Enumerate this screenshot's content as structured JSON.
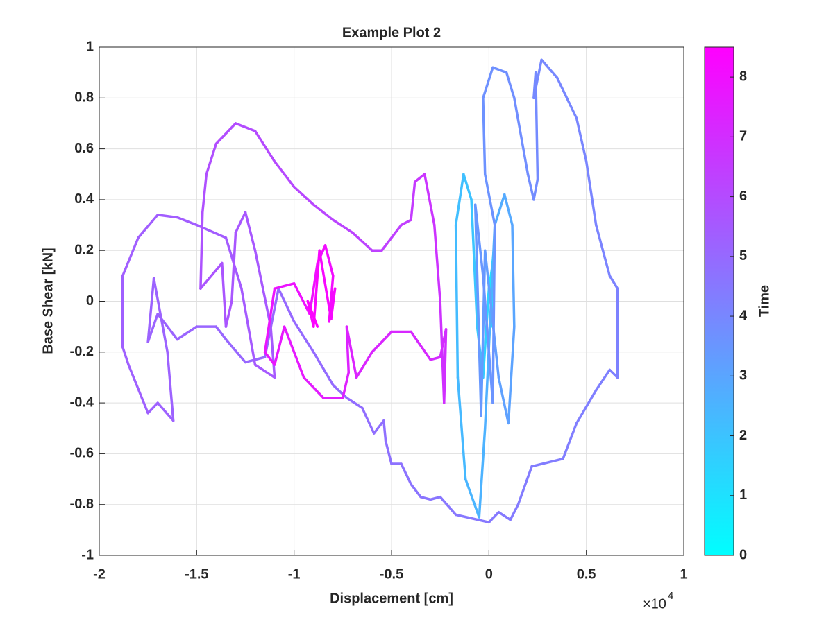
{
  "chart_data": {
    "type": "colored-line",
    "title": "Example Plot 2",
    "x_label": "Displacement [cm]",
    "y_label": "Base Shear [kN]",
    "x_multiplier": "×10",
    "x_multiplier_exponent": "4",
    "colorbar_label": "Time",
    "colormap": "cool",
    "grid": true,
    "xlim": [
      -20000,
      10000
    ],
    "xticks": [
      {
        "value": -20000,
        "label": "-2"
      },
      {
        "value": -15000,
        "label": "-1.5"
      },
      {
        "value": -10000,
        "label": "-1"
      },
      {
        "value": -5000,
        "label": "-0.5"
      },
      0,
      {
        "value": 5000,
        "label": "0.5"
      },
      {
        "value": 10000,
        "label": "1"
      }
    ],
    "ylim": [
      -1,
      1
    ],
    "yticks": [
      -1,
      -0.8,
      -0.6,
      -0.4,
      -0.2,
      0,
      0.2,
      0.4,
      0.6,
      0.8,
      1
    ],
    "clim": [
      0,
      8.5
    ],
    "cticks": [
      0,
      1,
      2,
      3,
      4,
      5,
      6,
      7,
      8
    ],
    "points": [
      {
        "x": 0,
        "y": 0,
        "time": 0
      },
      {
        "x": 300,
        "y": 0.24,
        "time": 0.3
      },
      {
        "x": 100,
        "y": -0.1,
        "time": 0.6
      },
      {
        "x": 200,
        "y": 0.15,
        "time": 0.9
      },
      {
        "x": 0,
        "y": 0.05,
        "time": 1.2
      },
      {
        "x": -300,
        "y": -0.3,
        "time": 1.8
      },
      {
        "x": -600,
        "y": -0.1,
        "time": 1.9
      },
      {
        "x": -900,
        "y": 0.4,
        "time": 2.0
      },
      {
        "x": -1300,
        "y": 0.5,
        "time": 2.1
      },
      {
        "x": -1700,
        "y": 0.3,
        "time": 2.2
      },
      {
        "x": -1600,
        "y": -0.3,
        "time": 2.3
      },
      {
        "x": -1200,
        "y": -0.7,
        "time": 2.4
      },
      {
        "x": -500,
        "y": -0.85,
        "time": 2.5
      },
      {
        "x": -200,
        "y": -0.5,
        "time": 2.6
      },
      {
        "x": 300,
        "y": 0.3,
        "time": 2.7
      },
      {
        "x": 800,
        "y": 0.42,
        "time": 2.8
      },
      {
        "x": 1200,
        "y": 0.3,
        "time": 2.9
      },
      {
        "x": 1300,
        "y": -0.1,
        "time": 3.0
      },
      {
        "x": 1000,
        "y": -0.48,
        "time": 3.1
      },
      {
        "x": 500,
        "y": -0.3,
        "time": 3.2
      },
      {
        "x": -200,
        "y": 0.2,
        "time": 3.3
      },
      {
        "x": -400,
        "y": -0.45,
        "time": 3.4
      },
      {
        "x": -700,
        "y": 0.38,
        "time": 3.45
      },
      {
        "x": -300,
        "y": 0.1,
        "time": 3.5
      },
      {
        "x": 200,
        "y": -0.4,
        "time": 3.55
      },
      {
        "x": 300,
        "y": 0.3,
        "time": 3.6
      },
      {
        "x": -200,
        "y": 0.5,
        "time": 3.63
      },
      {
        "x": -300,
        "y": 0.8,
        "time": 3.66
      },
      {
        "x": 200,
        "y": 0.92,
        "time": 3.7
      },
      {
        "x": 900,
        "y": 0.9,
        "time": 3.73
      },
      {
        "x": 1300,
        "y": 0.8,
        "time": 3.76
      },
      {
        "x": 2000,
        "y": 0.5,
        "time": 3.8
      },
      {
        "x": 2300,
        "y": 0.4,
        "time": 3.83
      },
      {
        "x": 2500,
        "y": 0.48,
        "time": 3.86
      },
      {
        "x": 2400,
        "y": 0.9,
        "time": 3.9
      },
      {
        "x": 2300,
        "y": 0.8,
        "time": 3.93
      },
      {
        "x": 2700,
        "y": 0.95,
        "time": 3.96
      },
      {
        "x": 3500,
        "y": 0.88,
        "time": 4.0
      },
      {
        "x": 4500,
        "y": 0.72,
        "time": 4.03
      },
      {
        "x": 5000,
        "y": 0.55,
        "time": 4.06
      },
      {
        "x": 5500,
        "y": 0.3,
        "time": 4.1
      },
      {
        "x": 6200,
        "y": 0.1,
        "time": 4.13
      },
      {
        "x": 6600,
        "y": 0.05,
        "time": 4.16
      },
      {
        "x": 6600,
        "y": -0.3,
        "time": 4.2
      },
      {
        "x": 6200,
        "y": -0.27,
        "time": 4.23
      },
      {
        "x": 5500,
        "y": -0.35,
        "time": 4.26
      },
      {
        "x": 4500,
        "y": -0.48,
        "time": 4.3
      },
      {
        "x": 3800,
        "y": -0.62,
        "time": 4.33
      },
      {
        "x": 2200,
        "y": -0.65,
        "time": 4.36
      },
      {
        "x": 1500,
        "y": -0.8,
        "time": 4.4
      },
      {
        "x": 1100,
        "y": -0.86,
        "time": 4.43
      },
      {
        "x": 500,
        "y": -0.83,
        "time": 4.46
      },
      {
        "x": 0,
        "y": -0.87,
        "time": 4.5
      },
      {
        "x": -1700,
        "y": -0.84,
        "time": 4.53
      },
      {
        "x": -2500,
        "y": -0.77,
        "time": 4.56
      },
      {
        "x": -3000,
        "y": -0.78,
        "time": 4.6
      },
      {
        "x": -3500,
        "y": -0.77,
        "time": 4.63
      },
      {
        "x": -4000,
        "y": -0.72,
        "time": 4.66
      },
      {
        "x": -4500,
        "y": -0.64,
        "time": 4.7
      },
      {
        "x": -5000,
        "y": -0.64,
        "time": 4.73
      },
      {
        "x": -5300,
        "y": -0.55,
        "time": 4.76
      },
      {
        "x": -5400,
        "y": -0.47,
        "time": 4.8
      },
      {
        "x": -5900,
        "y": -0.52,
        "time": 4.83
      },
      {
        "x": -6500,
        "y": -0.42,
        "time": 4.86
      },
      {
        "x": -7300,
        "y": -0.38,
        "time": 4.9
      },
      {
        "x": -8000,
        "y": -0.33,
        "time": 4.93
      },
      {
        "x": -9000,
        "y": -0.2,
        "time": 4.96
      },
      {
        "x": -10000,
        "y": -0.08,
        "time": 5.0
      },
      {
        "x": -10800,
        "y": 0.05,
        "time": 5.02
      },
      {
        "x": -11500,
        "y": -0.22,
        "time": 5.04
      },
      {
        "x": -12500,
        "y": -0.24,
        "time": 5.06
      },
      {
        "x": -13500,
        "y": -0.15,
        "time": 5.08
      },
      {
        "x": -14000,
        "y": -0.1,
        "time": 5.1
      },
      {
        "x": -15000,
        "y": -0.1,
        "time": 5.12
      },
      {
        "x": -16000,
        "y": -0.15,
        "time": 5.14
      },
      {
        "x": -17000,
        "y": -0.05,
        "time": 5.16
      },
      {
        "x": -17500,
        "y": -0.16,
        "time": 5.18
      },
      {
        "x": -17200,
        "y": 0.09,
        "time": 5.2
      },
      {
        "x": -16500,
        "y": -0.2,
        "time": 5.22
      },
      {
        "x": -16200,
        "y": -0.47,
        "time": 5.24
      },
      {
        "x": -17000,
        "y": -0.4,
        "time": 5.26
      },
      {
        "x": -17500,
        "y": -0.44,
        "time": 5.28
      },
      {
        "x": -18500,
        "y": -0.25,
        "time": 5.3
      },
      {
        "x": -18800,
        "y": -0.18,
        "time": 5.32
      },
      {
        "x": -18800,
        "y": 0.1,
        "time": 5.34
      },
      {
        "x": -18000,
        "y": 0.25,
        "time": 5.36
      },
      {
        "x": -17000,
        "y": 0.34,
        "time": 5.38
      },
      {
        "x": -16000,
        "y": 0.33,
        "time": 5.4
      },
      {
        "x": -15000,
        "y": 0.3,
        "time": 5.43
      },
      {
        "x": -13500,
        "y": 0.25,
        "time": 5.46
      },
      {
        "x": -12700,
        "y": 0.05,
        "time": 5.5
      },
      {
        "x": -12000,
        "y": -0.25,
        "time": 5.52
      },
      {
        "x": -11000,
        "y": -0.3,
        "time": 5.54
      },
      {
        "x": -11200,
        "y": -0.1,
        "time": 5.56
      },
      {
        "x": -12000,
        "y": 0.2,
        "time": 5.58
      },
      {
        "x": -12500,
        "y": 0.35,
        "time": 5.6
      },
      {
        "x": -13000,
        "y": 0.27,
        "time": 5.62
      },
      {
        "x": -13200,
        "y": 0,
        "time": 5.64
      },
      {
        "x": -13500,
        "y": -0.1,
        "time": 5.66
      },
      {
        "x": -13700,
        "y": 0.15,
        "time": 5.68
      },
      {
        "x": -14800,
        "y": 0.05,
        "time": 5.7
      },
      {
        "x": -14700,
        "y": 0.35,
        "time": 5.8
      },
      {
        "x": -14500,
        "y": 0.5,
        "time": 5.85
      },
      {
        "x": -14000,
        "y": 0.62,
        "time": 5.9
      },
      {
        "x": -13000,
        "y": 0.7,
        "time": 5.95
      },
      {
        "x": -12000,
        "y": 0.67,
        "time": 6.0
      },
      {
        "x": -11000,
        "y": 0.55,
        "time": 6.05
      },
      {
        "x": -10000,
        "y": 0.45,
        "time": 6.1
      },
      {
        "x": -9000,
        "y": 0.38,
        "time": 6.15
      },
      {
        "x": -8000,
        "y": 0.32,
        "time": 6.2
      },
      {
        "x": -7000,
        "y": 0.27,
        "time": 6.25
      },
      {
        "x": -6000,
        "y": 0.2,
        "time": 6.3
      },
      {
        "x": -5500,
        "y": 0.2,
        "time": 6.35
      },
      {
        "x": -4500,
        "y": 0.3,
        "time": 6.4
      },
      {
        "x": -4000,
        "y": 0.32,
        "time": 6.5
      },
      {
        "x": -3800,
        "y": 0.47,
        "time": 6.6
      },
      {
        "x": -3300,
        "y": 0.5,
        "time": 6.7
      },
      {
        "x": -2800,
        "y": 0.3,
        "time": 6.8
      },
      {
        "x": -2500,
        "y": 0,
        "time": 6.85
      },
      {
        "x": -2300,
        "y": -0.4,
        "time": 6.9
      },
      {
        "x": -2200,
        "y": -0.11,
        "time": 7.0
      },
      {
        "x": -2500,
        "y": -0.22,
        "time": 7.05
      },
      {
        "x": -3000,
        "y": -0.23,
        "time": 7.1
      },
      {
        "x": -4000,
        "y": -0.12,
        "time": 7.15
      },
      {
        "x": -5000,
        "y": -0.12,
        "time": 7.2
      },
      {
        "x": -6000,
        "y": -0.2,
        "time": 7.25
      },
      {
        "x": -6800,
        "y": -0.3,
        "time": 7.3
      },
      {
        "x": -7300,
        "y": -0.1,
        "time": 7.35
      },
      {
        "x": -7200,
        "y": -0.28,
        "time": 7.4
      },
      {
        "x": -7500,
        "y": -0.38,
        "time": 7.45
      },
      {
        "x": -8500,
        "y": -0.38,
        "time": 7.5
      },
      {
        "x": -9500,
        "y": -0.3,
        "time": 7.6
      },
      {
        "x": -10500,
        "y": -0.1,
        "time": 7.7
      },
      {
        "x": -11000,
        "y": -0.25,
        "time": 7.75
      },
      {
        "x": -11500,
        "y": -0.2,
        "time": 7.8
      },
      {
        "x": -11000,
        "y": 0.05,
        "time": 7.85
      },
      {
        "x": -10000,
        "y": 0.07,
        "time": 7.9
      },
      {
        "x": -9200,
        "y": -0.05,
        "time": 7.95
      },
      {
        "x": -8800,
        "y": 0.15,
        "time": 8.0
      },
      {
        "x": -8400,
        "y": 0.22,
        "time": 8.05
      },
      {
        "x": -8000,
        "y": 0.1,
        "time": 8.1
      },
      {
        "x": -8200,
        "y": -0.08,
        "time": 8.15
      },
      {
        "x": -7900,
        "y": 0.05,
        "time": 8.2
      },
      {
        "x": -8100,
        "y": -0.07,
        "time": 8.25
      },
      {
        "x": -8700,
        "y": 0.2,
        "time": 8.3
      },
      {
        "x": -9000,
        "y": -0.1,
        "time": 8.35
      },
      {
        "x": -9300,
        "y": 0,
        "time": 8.4
      },
      {
        "x": -8800,
        "y": -0.1,
        "time": 8.45
      }
    ]
  }
}
